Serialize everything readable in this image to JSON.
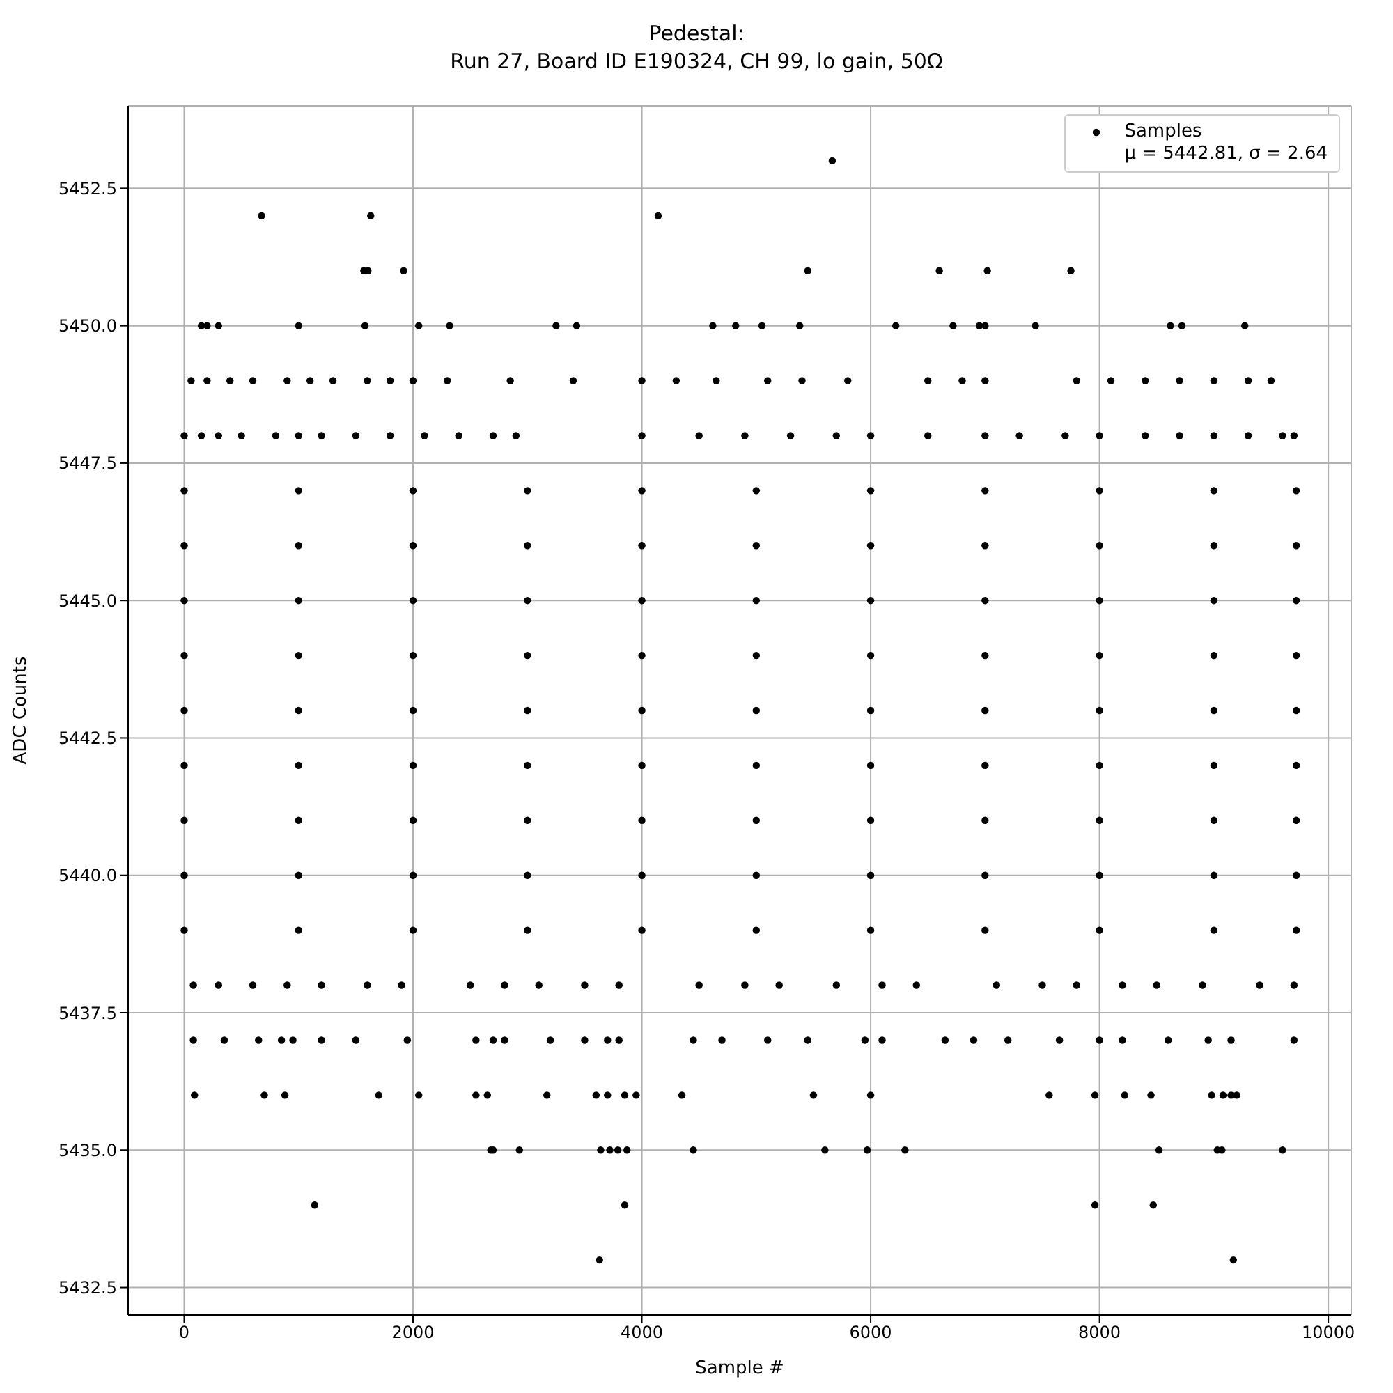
{
  "chart_data": {
    "type": "scatter",
    "title": "Pedestal:\nRun 27, Board ID E190324, CH 99, lo gain, 50Ω",
    "xlabel": "Sample #",
    "ylabel": "ADC Counts",
    "annotations": [
      "μ = 5442.81, σ = 2.64"
    ],
    "x": [
      5664,
      676,
      1630,
      4143,
      1570,
      1606,
      1918,
      5450,
      6600,
      7020,
      7750,
      150,
      200,
      300,
      1000,
      1580,
      2050,
      2320,
      3250,
      3430,
      4620,
      4820,
      5050,
      5380,
      6220,
      6720,
      6950,
      7000,
      7440,
      8620,
      8720,
      9270,
      60,
      200,
      400,
      600,
      900,
      1100,
      1300,
      1600,
      1800,
      2000,
      2300,
      2850,
      3400,
      4000,
      4300,
      4650,
      5100,
      5400,
      5800,
      6500,
      6800,
      7000,
      7800,
      8100,
      8400,
      8700,
      9000,
      9300,
      9500,
      0,
      150,
      300,
      500,
      800,
      1000,
      1200,
      1500,
      1800,
      2100,
      2400,
      2700,
      2900,
      4000,
      4500,
      4900,
      5300,
      5700,
      6000,
      6500,
      7000,
      7300,
      7700,
      8000,
      8400,
      8700,
      9000,
      9300,
      9600,
      9700,
      0,
      1000,
      2000,
      3000,
      4000,
      5000,
      6000,
      7000,
      8000,
      9000,
      9720,
      0,
      1000,
      2000,
      3000,
      4000,
      5000,
      6000,
      7000,
      8000,
      9000,
      9720,
      0,
      1000,
      2000,
      3000,
      4000,
      5000,
      6000,
      7000,
      8000,
      9000,
      9720,
      0,
      1000,
      2000,
      3000,
      4000,
      5000,
      6000,
      7000,
      8000,
      9000,
      9720,
      0,
      1000,
      2000,
      3000,
      4000,
      5000,
      6000,
      7000,
      8000,
      9000,
      9720,
      0,
      1000,
      2000,
      3000,
      4000,
      5000,
      6000,
      7000,
      8000,
      9000,
      9720,
      0,
      1000,
      2000,
      3000,
      4000,
      5000,
      6000,
      7000,
      8000,
      9000,
      9720,
      0,
      1000,
      2000,
      3000,
      4000,
      5000,
      6000,
      7000,
      8000,
      9000,
      9720,
      0,
      1000,
      2000,
      3000,
      4000,
      5000,
      6000,
      7000,
      8000,
      9000,
      9720,
      80,
      300,
      600,
      900,
      1200,
      1600,
      1900,
      2500,
      2800,
      3100,
      3500,
      3800,
      4500,
      4900,
      5200,
      5700,
      6100,
      6400,
      7100,
      7500,
      7800,
      8200,
      8500,
      8900,
      9400,
      9700,
      80,
      350,
      650,
      850,
      950,
      1200,
      1500,
      1950,
      2550,
      2700,
      2800,
      3200,
      3500,
      3700,
      3800,
      4450,
      4700,
      5100,
      5450,
      5950,
      6100,
      6650,
      6900,
      7200,
      7650,
      8000,
      8200,
      8600,
      8950,
      9150,
      9700,
      90,
      700,
      880,
      1700,
      2050,
      2550,
      2650,
      3170,
      3600,
      3700,
      3850,
      3950,
      4350,
      5500,
      6000,
      7560,
      7960,
      8220,
      8450,
      8980,
      9080,
      9150,
      9200,
      2680,
      2700,
      2930,
      3640,
      3720,
      3790,
      3870,
      4450,
      5600,
      5970,
      6300,
      8520,
      9030,
      9070,
      9600,
      1140,
      3850,
      7960,
      8470,
      3630,
      9170
    ],
    "series": [
      {
        "name": "Samples",
        "color": "#000000",
        "values": [
          5453,
          5452,
          5452,
          5452,
          5451,
          5451,
          5451,
          5451,
          5451,
          5451,
          5451,
          5450,
          5450,
          5450,
          5450,
          5450,
          5450,
          5450,
          5450,
          5450,
          5450,
          5450,
          5450,
          5450,
          5450,
          5450,
          5450,
          5450,
          5450,
          5450,
          5450,
          5450,
          5449,
          5449,
          5449,
          5449,
          5449,
          5449,
          5449,
          5449,
          5449,
          5449,
          5449,
          5449,
          5449,
          5449,
          5449,
          5449,
          5449,
          5449,
          5449,
          5449,
          5449,
          5449,
          5449,
          5449,
          5449,
          5449,
          5449,
          5449,
          5449,
          5448,
          5448,
          5448,
          5448,
          5448,
          5448,
          5448,
          5448,
          5448,
          5448,
          5448,
          5448,
          5448,
          5448,
          5448,
          5448,
          5448,
          5448,
          5448,
          5448,
          5448,
          5448,
          5448,
          5448,
          5448,
          5448,
          5448,
          5448,
          5448,
          5448,
          5447,
          5447,
          5447,
          5447,
          5447,
          5447,
          5447,
          5447,
          5447,
          5447,
          5447,
          5446,
          5446,
          5446,
          5446,
          5446,
          5446,
          5446,
          5446,
          5446,
          5446,
          5446,
          5445,
          5445,
          5445,
          5445,
          5445,
          5445,
          5445,
          5445,
          5445,
          5445,
          5445,
          5444,
          5444,
          5444,
          5444,
          5444,
          5444,
          5444,
          5444,
          5444,
          5444,
          5444,
          5443,
          5443,
          5443,
          5443,
          5443,
          5443,
          5443,
          5443,
          5443,
          5443,
          5443,
          5442,
          5442,
          5442,
          5442,
          5442,
          5442,
          5442,
          5442,
          5442,
          5442,
          5442,
          5441,
          5441,
          5441,
          5441,
          5441,
          5441,
          5441,
          5441,
          5441,
          5441,
          5441,
          5440,
          5440,
          5440,
          5440,
          5440,
          5440,
          5440,
          5440,
          5440,
          5440,
          5440,
          5439,
          5439,
          5439,
          5439,
          5439,
          5439,
          5439,
          5439,
          5439,
          5439,
          5439,
          5438,
          5438,
          5438,
          5438,
          5438,
          5438,
          5438,
          5438,
          5438,
          5438,
          5438,
          5438,
          5438,
          5438,
          5438,
          5438,
          5438,
          5438,
          5438,
          5438,
          5438,
          5438,
          5438,
          5438,
          5438,
          5438,
          5437,
          5437,
          5437,
          5437,
          5437,
          5437,
          5437,
          5437,
          5437,
          5437,
          5437,
          5437,
          5437,
          5437,
          5437,
          5437,
          5437,
          5437,
          5437,
          5437,
          5437,
          5437,
          5437,
          5437,
          5437,
          5437,
          5437,
          5437,
          5437,
          5437,
          5437,
          5436,
          5436,
          5436,
          5436,
          5436,
          5436,
          5436,
          5436,
          5436,
          5436,
          5436,
          5436,
          5436,
          5436,
          5436,
          5436,
          5436,
          5436,
          5436,
          5436,
          5436,
          5436,
          5436,
          5435,
          5435,
          5435,
          5435,
          5435,
          5435,
          5435,
          5435,
          5435,
          5435,
          5435,
          5435,
          5435,
          5435,
          5435,
          5434,
          5434,
          5434,
          5434,
          5433,
          5433
        ]
      }
    ],
    "xlim": [
      -490,
      10200
    ],
    "xticks": [
      0,
      2000,
      4000,
      6000,
      8000,
      10000
    ],
    "ylim": [
      5432,
      5454
    ],
    "yticks": [
      {
        "value": 5432.5,
        "label": "5432.5"
      },
      {
        "value": 5435,
        "label": "5435.0"
      },
      {
        "value": 5437.5,
        "label": "5437.5"
      },
      {
        "value": 5440,
        "label": "5440.0"
      },
      {
        "value": 5442.5,
        "label": "5442.5"
      },
      {
        "value": 5445,
        "label": "5445.0"
      },
      {
        "value": 5447.5,
        "label": "5447.5"
      },
      {
        "value": 5450,
        "label": "5450.0"
      },
      {
        "value": 5452.5,
        "label": "5452.5"
      }
    ],
    "grid": true,
    "legend": "top right",
    "marker": "circle"
  }
}
